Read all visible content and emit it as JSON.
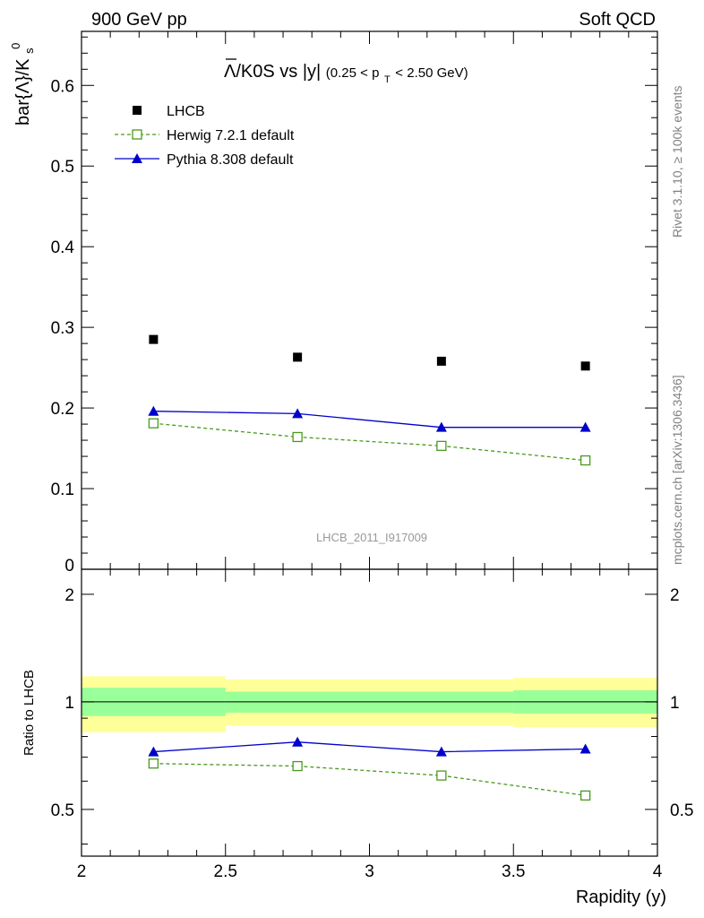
{
  "header": {
    "left_label": "900 GeV pp",
    "right_label": "Soft QCD"
  },
  "side_labels": {
    "rivet": "Rivet 3.1.10, ≥ 100k events",
    "mcplots": "mcplots.cern.ch [arXiv:1306.3436]"
  },
  "watermark": "LHCB_2011_I917009",
  "chart_data": [
    {
      "type": "scatter",
      "panel": "main",
      "title": {
        "main": "Λ/K0S vs |y|",
        "note_open": "(0.25 < p",
        "note_sub": "T",
        "note_close": " < 2.50 GeV)"
      },
      "ylabel": {
        "base": "bar{Λ}/K",
        "sup": "0",
        "sub": "s"
      },
      "xlim": [
        2.0,
        4.0
      ],
      "ylim": [
        0.0,
        0.667
      ],
      "yticks": [
        0,
        0.1,
        0.2,
        0.3,
        0.4,
        0.5,
        0.6
      ],
      "ytick_labels": [
        "0",
        "0.1",
        "0.2",
        "0.3",
        "0.4",
        "0.5",
        "0.6"
      ],
      "x": [
        2.25,
        2.75,
        3.25,
        3.75
      ],
      "series": [
        {
          "name": "LHCB",
          "style": "data",
          "color": "#000000",
          "values": [
            0.285,
            0.263,
            0.258,
            0.252
          ],
          "errors": [
            0.0,
            0.0,
            0.0,
            0.0
          ]
        },
        {
          "name": "Herwig 7.2.1 default",
          "style": "dashed-open-square",
          "color": "#4a9a1e",
          "values": [
            0.181,
            0.164,
            0.153,
            0.135
          ],
          "errors": [
            0.002,
            0.002,
            0.002,
            0.003
          ]
        },
        {
          "name": "Pythia 8.308 default",
          "style": "solid-triangle",
          "color": "#0000cc",
          "values": [
            0.196,
            0.193,
            0.176,
            0.176
          ],
          "errors": [
            0.002,
            0.002,
            0.003,
            0.004
          ]
        }
      ],
      "legend": "top-left"
    },
    {
      "type": "scatter",
      "panel": "ratio",
      "ylabel": "Ratio to LHCB",
      "xlabel": "Rapidity (y)",
      "xlim": [
        2.0,
        4.0
      ],
      "ylim": [
        0.37,
        2.35
      ],
      "xticks": [
        2,
        2.5,
        3,
        3.5,
        4
      ],
      "xtick_labels": [
        "2",
        "2.5",
        "3",
        "3.5",
        "4"
      ],
      "yticks": [
        0.5,
        1,
        2
      ],
      "ytick_labels": [
        "0.5",
        "1",
        "2"
      ],
      "bands": [
        {
          "x0": 2.0,
          "x1": 2.5,
          "inner": [
            0.913,
            1.095
          ],
          "outer": [
            0.822,
            1.179
          ]
        },
        {
          "x0": 2.5,
          "x1": 3.0,
          "inner": [
            0.933,
            1.068
          ],
          "outer": [
            0.858,
            1.156
          ]
        },
        {
          "x0": 3.0,
          "x1": 3.5,
          "inner": [
            0.933,
            1.068
          ],
          "outer": [
            0.858,
            1.156
          ]
        },
        {
          "x0": 3.5,
          "x1": 4.0,
          "inner": [
            0.928,
            1.077
          ],
          "outer": [
            0.85,
            1.167
          ]
        }
      ],
      "x": [
        2.25,
        2.75,
        3.25,
        3.75
      ],
      "series": [
        {
          "name": "Herwig 7.2.1 default",
          "style": "dashed-open-square",
          "color": "#4a9a1e",
          "values": [
            0.672,
            0.661,
            0.622,
            0.547
          ],
          "errors": [
            0.008,
            0.008,
            0.01,
            0.012
          ]
        },
        {
          "name": "Pythia 8.308 default",
          "style": "solid-triangle",
          "color": "#0000cc",
          "values": [
            0.725,
            0.772,
            0.725,
            0.738
          ],
          "errors": [
            0.008,
            0.01,
            0.013,
            0.016
          ]
        }
      ]
    }
  ]
}
